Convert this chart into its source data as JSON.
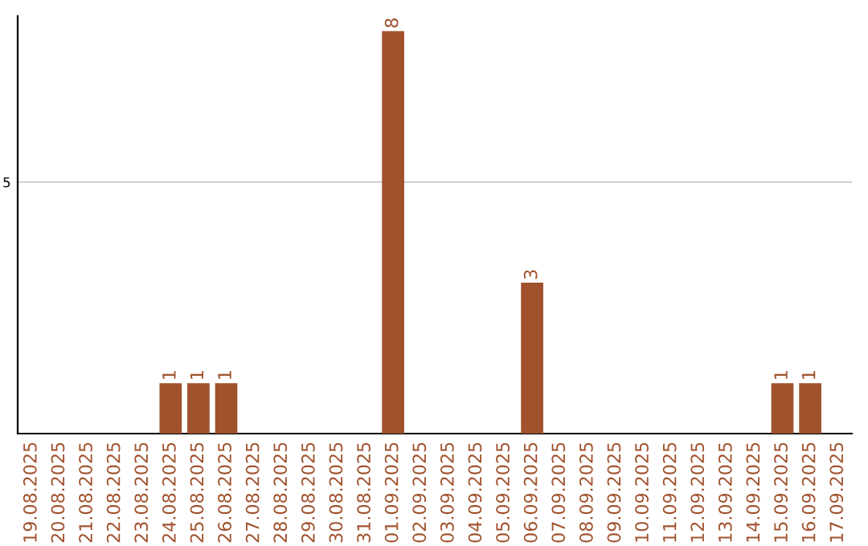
{
  "chart_data": {
    "type": "bar",
    "categories": [
      "19.08.2025",
      "20.08.2025",
      "21.08.2025",
      "22.08.2025",
      "23.08.2025",
      "24.08.2025",
      "25.08.2025",
      "26.08.2025",
      "27.08.2025",
      "28.08.2025",
      "29.08.2025",
      "30.08.2025",
      "31.08.2025",
      "01.09.2025",
      "02.09.2025",
      "03.09.2025",
      "04.09.2025",
      "05.09.2025",
      "06.09.2025",
      "07.09.2025",
      "08.09.2025",
      "09.09.2025",
      "10.09.2025",
      "11.09.2025",
      "12.09.2025",
      "13.09.2025",
      "14.09.2025",
      "15.09.2025",
      "16.09.2025",
      "17.09.2025"
    ],
    "values": [
      0,
      0,
      0,
      0,
      0,
      1,
      1,
      1,
      0,
      0,
      0,
      0,
      0,
      8,
      0,
      0,
      0,
      0,
      3,
      0,
      0,
      0,
      0,
      0,
      0,
      0,
      0,
      1,
      1,
      0
    ],
    "color": "#a0522d",
    "value_labels": [
      null,
      null,
      null,
      null,
      null,
      "1",
      "1",
      "1",
      null,
      null,
      null,
      null,
      null,
      "8",
      null,
      null,
      null,
      null,
      "3",
      null,
      null,
      null,
      null,
      null,
      null,
      null,
      null,
      "1",
      "1",
      null
    ],
    "ylim": [
      0,
      8.3
    ],
    "yticks": [
      5
    ],
    "grid": "y"
  }
}
